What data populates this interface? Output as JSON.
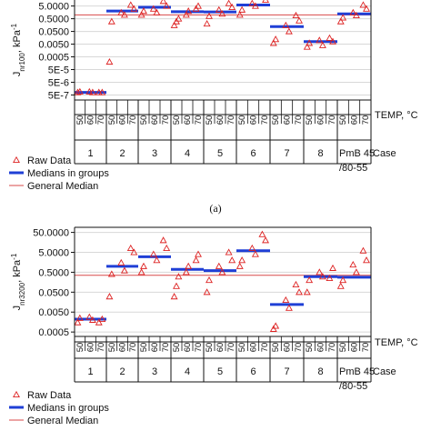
{
  "caption": "(a)",
  "colors": {
    "raw": "#dd2222",
    "median": "#1f3fd6",
    "general": "#d94a4a",
    "grid": "#d8d8d8"
  },
  "group_labels": [
    "1",
    "2",
    "3",
    "4",
    "5",
    "6",
    "7",
    "8",
    "PmB 45/80-55"
  ],
  "case_label": "Case",
  "temp_label": "TEMP, °C",
  "temp_ticks": [
    "50",
    "60",
    "70"
  ],
  "legend": {
    "raw": "Raw Data",
    "median": "Medians in groups",
    "general": "General Median"
  },
  "chart_data": [
    {
      "type": "scatter",
      "id": "a",
      "ylabel": "Jnr100, kPa⁻¹",
      "ylabel_main": "J",
      "ylabel_sub": "nr100",
      "ylabel_unit": ", kPa",
      "ylabel_sup": "-1",
      "yscale": "log",
      "yticks": [
        "5.0000",
        "0.5000",
        "0.0500",
        "0.0050",
        "0.0005",
        "5E-5",
        "5E-6",
        "5E-7"
      ],
      "ytick_values": [
        5,
        0.5,
        0.05,
        0.005,
        0.0005,
        5e-05,
        5e-06,
        5e-07
      ],
      "ylim": [
        2e-07,
        40
      ],
      "general_median": 1.0,
      "groups": [
        {
          "label": "1",
          "median": 8e-07,
          "raw": [
            [
              0,
              8e-07
            ],
            [
              0,
              9e-07
            ],
            [
              1,
              8e-07
            ],
            [
              1,
              9e-07
            ],
            [
              2,
              8e-07
            ],
            [
              2,
              8e-07
            ]
          ]
        },
        {
          "label": "2",
          "median": 2.0,
          "raw": [
            [
              0,
              0.0002
            ],
            [
              0,
              0.3
            ],
            [
              1,
              1.0
            ],
            [
              1,
              1.5
            ],
            [
              2,
              3.0
            ],
            [
              2,
              6.0
            ]
          ]
        },
        {
          "label": "3",
          "median": 4.0,
          "raw": [
            [
              0,
              1.0
            ],
            [
              0,
              2.0
            ],
            [
              1,
              1.5
            ],
            [
              1,
              3.0
            ],
            [
              2,
              5.0
            ],
            [
              2,
              12.0
            ]
          ]
        },
        {
          "label": "4",
          "median": 1.8,
          "raw": [
            [
              0,
              0.15
            ],
            [
              0,
              0.3
            ],
            [
              0,
              0.5
            ],
            [
              1,
              1.0
            ],
            [
              1,
              2.0
            ],
            [
              2,
              3.0
            ],
            [
              2,
              5.0
            ]
          ]
        },
        {
          "label": "5",
          "median": 1.7,
          "raw": [
            [
              0,
              0.2
            ],
            [
              0,
              0.8
            ],
            [
              1,
              1.2
            ],
            [
              1,
              2.5
            ],
            [
              2,
              4.0
            ],
            [
              2,
              8.0
            ]
          ]
        },
        {
          "label": "6",
          "median": 6.0,
          "raw": [
            [
              0,
              1.0
            ],
            [
              0,
              2.5
            ],
            [
              1,
              5.0
            ],
            [
              1,
              8.0
            ],
            [
              2,
              15.0
            ],
            [
              2,
              25.0
            ]
          ]
        },
        {
          "label": "7",
          "median": 0.12,
          "raw": [
            [
              0,
              0.006
            ],
            [
              0,
              0.012
            ],
            [
              1,
              0.05
            ],
            [
              1,
              0.15
            ],
            [
              2,
              0.35
            ],
            [
              2,
              0.9
            ]
          ]
        },
        {
          "label": "8",
          "median": 0.008,
          "raw": [
            [
              0,
              0.003
            ],
            [
              0,
              0.006
            ],
            [
              1,
              0.004
            ],
            [
              1,
              0.01
            ],
            [
              2,
              0.008
            ],
            [
              2,
              0.015
            ]
          ]
        },
        {
          "label": "PmB 45/80-55",
          "median": 1.2,
          "raw": [
            [
              0,
              0.3
            ],
            [
              0,
              0.6
            ],
            [
              1,
              0.9
            ],
            [
              1,
              1.5
            ],
            [
              2,
              3.0
            ],
            [
              2,
              6.0
            ]
          ]
        }
      ]
    },
    {
      "type": "scatter",
      "id": "b",
      "ylabel": "Jnr3200, kPa⁻¹",
      "ylabel_main": "J",
      "ylabel_sub": "nr3200",
      "ylabel_unit": ", kPa",
      "ylabel_sup": "-1",
      "yscale": "log",
      "yticks": [
        "50.0000",
        "5.0000",
        "0.5000",
        "0.0500",
        "0.0050",
        "0.0005"
      ],
      "ytick_values": [
        50,
        5,
        0.5,
        0.05,
        0.005,
        0.0005
      ],
      "ylim": [
        0.0003,
        90
      ],
      "general_median": 0.35,
      "groups": [
        {
          "label": "1",
          "median": 0.0022,
          "raw": [
            [
              0,
              0.0015
            ],
            [
              0,
              0.0025
            ],
            [
              1,
              0.002
            ],
            [
              1,
              0.0028
            ],
            [
              2,
              0.0022
            ],
            [
              2,
              0.0015
            ]
          ]
        },
        {
          "label": "2",
          "median": 1.0,
          "raw": [
            [
              0,
              0.03
            ],
            [
              0,
              0.4
            ],
            [
              1,
              0.6
            ],
            [
              1,
              1.5
            ],
            [
              2,
              5.0
            ],
            [
              2,
              8.0
            ]
          ]
        },
        {
          "label": "3",
          "median": 3.0,
          "raw": [
            [
              0,
              0.5
            ],
            [
              0,
              1.0
            ],
            [
              1,
              2.0
            ],
            [
              1,
              4.0
            ],
            [
              2,
              8.0
            ],
            [
              2,
              20.0
            ]
          ]
        },
        {
          "label": "4",
          "median": 0.7,
          "raw": [
            [
              0,
              0.03
            ],
            [
              0,
              0.1
            ],
            [
              0,
              0.3
            ],
            [
              1,
              0.5
            ],
            [
              1,
              1.0
            ],
            [
              2,
              2.0
            ],
            [
              2,
              4.0
            ]
          ]
        },
        {
          "label": "5",
          "median": 0.6,
          "raw": [
            [
              0,
              0.05
            ],
            [
              0,
              0.2
            ],
            [
              1,
              0.5
            ],
            [
              1,
              1.0
            ],
            [
              2,
              2.0
            ],
            [
              2,
              5.0
            ]
          ]
        },
        {
          "label": "6",
          "median": 6.0,
          "raw": [
            [
              0,
              1.0
            ],
            [
              0,
              2.0
            ],
            [
              1,
              4.0
            ],
            [
              1,
              8.0
            ],
            [
              2,
              20.0
            ],
            [
              2,
              40.0
            ]
          ]
        },
        {
          "label": "7",
          "median": 0.012,
          "raw": [
            [
              0,
              0.0007
            ],
            [
              0,
              0.001
            ],
            [
              1,
              0.008
            ],
            [
              1,
              0.02
            ],
            [
              2,
              0.05
            ],
            [
              2,
              0.12
            ]
          ]
        },
        {
          "label": "8",
          "median": 0.3,
          "raw": [
            [
              0,
              0.05
            ],
            [
              0,
              0.2
            ],
            [
              1,
              0.3
            ],
            [
              1,
              0.5
            ],
            [
              2,
              0.8
            ],
            [
              2,
              0.25
            ]
          ]
        },
        {
          "label": "PmB 45/80-55",
          "median": 0.28,
          "raw": [
            [
              0,
              0.1
            ],
            [
              0,
              0.2
            ],
            [
              1,
              0.5
            ],
            [
              1,
              1.2
            ],
            [
              2,
              2.0
            ],
            [
              2,
              6.0
            ]
          ]
        }
      ]
    }
  ]
}
